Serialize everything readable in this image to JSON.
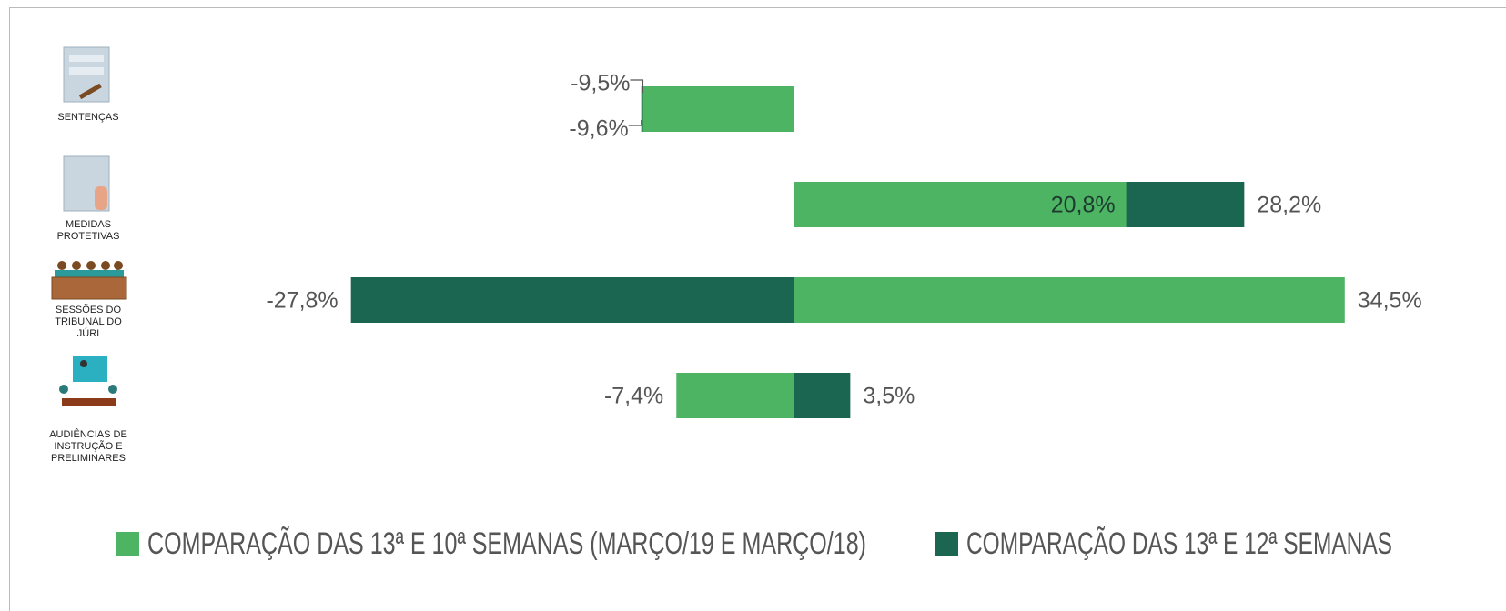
{
  "chart_data": {
    "type": "diverging-bar",
    "categories": [
      "SENTENÇAS",
      "MEDIDAS PROTETIVAS",
      "SESSÕES DO TRIBUNAL DO JÚRI",
      "AUDIÊNCIAS DE INSTRUÇÃO E PRELIMINARES"
    ],
    "series": [
      {
        "name": "COMPARAÇÃO DAS 13ª E 10ª SEMANAS (MARÇO/19 E MARÇO/18)",
        "color": "#4db463",
        "values": [
          -9.5,
          20.8,
          34.5,
          -7.4
        ],
        "value_labels": [
          "-9,5%",
          "20,8%",
          "34,5%",
          "-7,4%"
        ]
      },
      {
        "name": "COMPARAÇÃO DAS 13ª E 12ª SEMANAS",
        "color": "#1a6651",
        "values": [
          -9.6,
          28.2,
          -27.8,
          3.5
        ],
        "value_labels": [
          "-9,6%",
          "28,2%",
          "-27,8%",
          "3,5%"
        ]
      }
    ],
    "legend": "bottom"
  }
}
